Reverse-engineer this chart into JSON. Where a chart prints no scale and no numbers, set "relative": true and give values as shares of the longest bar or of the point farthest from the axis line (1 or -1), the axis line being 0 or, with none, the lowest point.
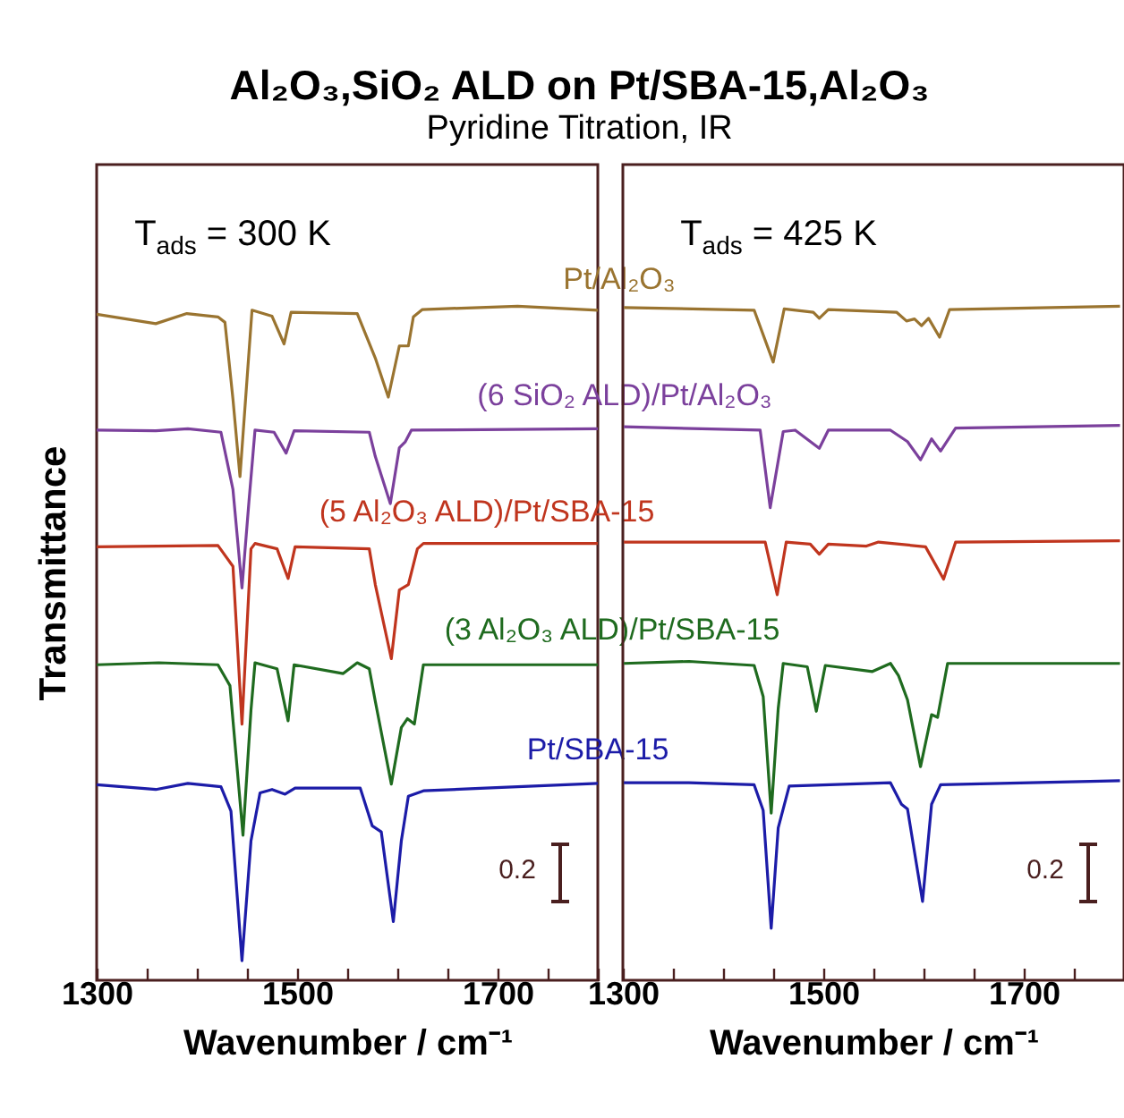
{
  "chart_data": [
    {
      "type": "line",
      "title": "Al₂O₃,SiO₂ ALD on Pt/SBA-15,Al₂O₃",
      "subtitle": "Pyridine Titration, IR",
      "xlabel": "Wavenumber / cm⁻¹",
      "ylabel": "Transmittance",
      "annotations": [
        "T$_{ads}$ = 300 K",
        "0.2"
      ],
      "relative": true,
      "xlim": [
        1300,
        1800
      ],
      "xticks": [
        1300,
        {
          "value": 1350,
          "label": null
        },
        {
          "value": 1400,
          "label": null
        },
        {
          "value": 1450,
          "label": null
        },
        1500,
        {
          "value": 1550,
          "label": null
        },
        {
          "value": 1600,
          "label": null
        },
        {
          "value": 1650,
          "label": null
        },
        1700,
        {
          "value": 1750,
          "label": null
        },
        {
          "value": 1800,
          "label": null
        }
      ],
      "tick_labels": "x",
      "series": [
        {
          "name": "Pt/Al₂O₃",
          "color": "#9a7430",
          "x": [
            1300,
            1359,
            1390,
            1421,
            1428,
            1436,
            1443,
            1455,
            1475,
            1487,
            1494,
            1560,
            1578,
            1591,
            1602,
            1611,
            1616,
            1625,
            1720,
            1800
          ],
          "values": [
            0.988,
            0.974,
            0.989,
            0.984,
            0.976,
            0.862,
            0.747,
            0.994,
            0.985,
            0.944,
            0.991,
            0.989,
            0.923,
            0.865,
            0.941,
            0.941,
            0.984,
            0.995,
            1.0,
            0.994
          ]
        },
        {
          "name": "(6 SiO₂ ALD)/Pt/Al₂O₃",
          "color": "#7b409c",
          "x": [
            1300,
            1359,
            1391,
            1424,
            1436,
            1445,
            1452,
            1458,
            1477,
            1489,
            1497,
            1572,
            1578,
            1593,
            1602,
            1608,
            1614,
            1800
          ],
          "values": [
            0.816,
            0.815,
            0.818,
            0.813,
            0.728,
            0.582,
            0.711,
            0.816,
            0.813,
            0.782,
            0.815,
            0.813,
            0.777,
            0.707,
            0.79,
            0.799,
            0.816,
            0.818
          ]
        },
        {
          "name": "(5 Al₂O₃ ALD)/Pt/SBA-15",
          "color": "#c0351e",
          "x": [
            1300,
            1421,
            1436,
            1445,
            1454,
            1458,
            1480,
            1491,
            1498,
            1572,
            1578,
            1594,
            1602,
            1611,
            1620,
            1626,
            1800
          ],
          "values": [
            0.643,
            0.645,
            0.614,
            0.38,
            0.64,
            0.648,
            0.64,
            0.596,
            0.643,
            0.64,
            0.587,
            0.477,
            0.579,
            0.587,
            0.64,
            0.648,
            0.648
          ]
        },
        {
          "name": "(3 Al₂O₃ ALD)/Pt/SBA-15",
          "color": "#1f6b1f",
          "x": [
            1300,
            1362,
            1421,
            1433,
            1446,
            1454,
            1458,
            1480,
            1491,
            1497,
            1546,
            1560,
            1572,
            1578,
            1594,
            1604,
            1610,
            1617,
            1626,
            1800
          ],
          "values": [
            0.468,
            0.471,
            0.468,
            0.437,
            0.215,
            0.401,
            0.471,
            0.462,
            0.385,
            0.468,
            0.455,
            0.471,
            0.462,
            0.414,
            0.291,
            0.375,
            0.388,
            0.38,
            0.468,
            0.468
          ]
        },
        {
          "name": "Pt/SBA-15",
          "color": "#1c1ca8",
          "x": [
            1300,
            1359,
            1391,
            1424,
            1434,
            1445,
            1454,
            1463,
            1475,
            1488,
            1498,
            1563,
            1575,
            1584,
            1596,
            1604,
            1611,
            1626,
            1688,
            1800
          ],
          "values": [
            0.29,
            0.283,
            0.292,
            0.287,
            0.251,
            0.029,
            0.207,
            0.278,
            0.283,
            0.276,
            0.285,
            0.285,
            0.229,
            0.22,
            0.087,
            0.207,
            0.273,
            0.281,
            0.285,
            0.292
          ]
        }
      ]
    },
    {
      "type": "line",
      "xlabel": "Wavenumber / cm⁻¹",
      "annotations": [
        "T$_{ads}$ = 425 K",
        "0.2"
      ],
      "relative": true,
      "xlim": [
        1300,
        1800
      ],
      "xticks": [
        1300,
        {
          "value": 1350,
          "label": null
        },
        {
          "value": 1400,
          "label": null
        },
        {
          "value": 1450,
          "label": null
        },
        1500,
        {
          "value": 1550,
          "label": null
        },
        {
          "value": 1600,
          "label": null
        },
        {
          "value": 1650,
          "label": null
        },
        1700,
        {
          "value": 1750,
          "label": null
        },
        {
          "value": 1800,
          "label": null
        }
      ],
      "tick_labels": "x",
      "series": [
        {
          "color": "#9a7430",
          "x": [
            1301,
            1431,
            1450,
            1461,
            1490,
            1496,
            1505,
            1573,
            1583,
            1591,
            1598,
            1605,
            1616,
            1626,
            1796
          ],
          "values": [
            0.998,
            0.994,
            0.917,
            0.996,
            0.991,
            0.982,
            0.995,
            0.991,
            0.978,
            0.981,
            0.971,
            0.982,
            0.954,
            0.995,
            1.0
          ]
        },
        {
          "color": "#7b409c",
          "x": [
            1301,
            1437,
            1447,
            1460,
            1472,
            1496,
            1505,
            1567,
            1584,
            1597,
            1608,
            1617,
            1632,
            1796
          ],
          "values": [
            0.821,
            0.816,
            0.701,
            0.814,
            0.816,
            0.789,
            0.816,
            0.816,
            0.799,
            0.772,
            0.803,
            0.785,
            0.819,
            0.823
          ]
        },
        {
          "color": "#c0351e",
          "x": [
            1301,
            1442,
            1454,
            1463,
            1487,
            1496,
            1505,
            1543,
            1555,
            1602,
            1620,
            1632,
            1796
          ],
          "values": [
            0.65,
            0.65,
            0.572,
            0.65,
            0.647,
            0.632,
            0.647,
            0.644,
            0.65,
            0.643,
            0.595,
            0.65,
            0.652
          ]
        },
        {
          "color": "#1f6b1f",
          "x": [
            1301,
            1366,
            1431,
            1440,
            1448,
            1455,
            1460,
            1484,
            1493,
            1502,
            1549,
            1567,
            1575,
            1584,
            1597,
            1608,
            1614,
            1624,
            1796
          ],
          "values": [
            0.47,
            0.473,
            0.467,
            0.421,
            0.248,
            0.403,
            0.47,
            0.465,
            0.399,
            0.467,
            0.458,
            0.47,
            0.452,
            0.416,
            0.317,
            0.394,
            0.39,
            0.47,
            0.47
          ]
        },
        {
          "color": "#1c1ca8",
          "x": [
            1301,
            1366,
            1431,
            1440,
            1448,
            1455,
            1466,
            1567,
            1578,
            1584,
            1599,
            1608,
            1617,
            1796
          ],
          "values": [
            0.293,
            0.293,
            0.29,
            0.252,
            0.077,
            0.226,
            0.288,
            0.293,
            0.261,
            0.254,
            0.117,
            0.261,
            0.29,
            0.296
          ]
        }
      ]
    }
  ]
}
